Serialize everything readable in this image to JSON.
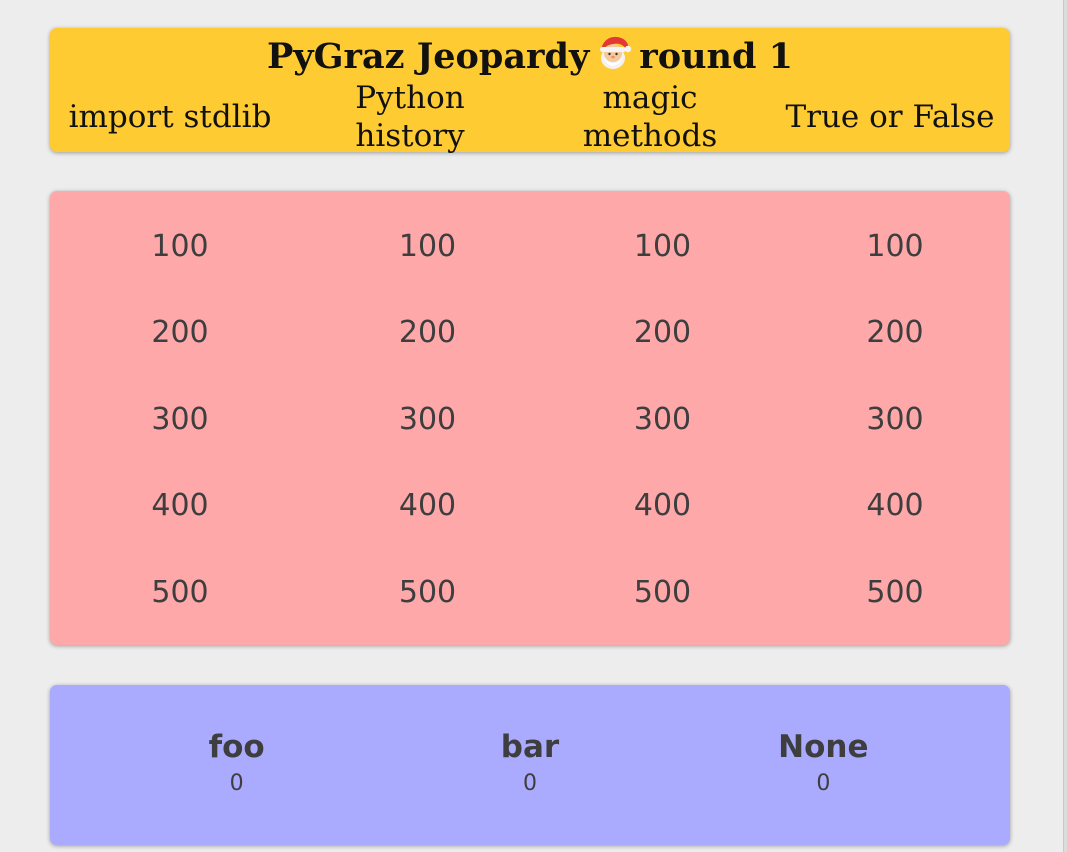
{
  "header": {
    "title_prefix": "PyGraz Jeopardy",
    "title_suffix": "round 1",
    "categories": [
      {
        "line1": "import stdlib",
        "line2": ""
      },
      {
        "line1": "Python",
        "line2": "history"
      },
      {
        "line1": "magic",
        "line2": "methods"
      },
      {
        "line1": "True or False",
        "line2": ""
      }
    ]
  },
  "board": {
    "rows": [
      [
        "100",
        "100",
        "100",
        "100"
      ],
      [
        "200",
        "200",
        "200",
        "200"
      ],
      [
        "300",
        "300",
        "300",
        "300"
      ],
      [
        "400",
        "400",
        "400",
        "400"
      ],
      [
        "500",
        "500",
        "500",
        "500"
      ]
    ]
  },
  "teams": [
    {
      "name": "foo",
      "score": "0"
    },
    {
      "name": "bar",
      "score": "0"
    },
    {
      "name": "None",
      "score": "0"
    }
  ],
  "colors": {
    "header_bg": "#ffcb33",
    "board_bg": "#ffa8aa",
    "teams_bg": "#aaaaff",
    "page_bg": "#ededed"
  },
  "icons": {
    "title_icon": "santa-icon"
  }
}
